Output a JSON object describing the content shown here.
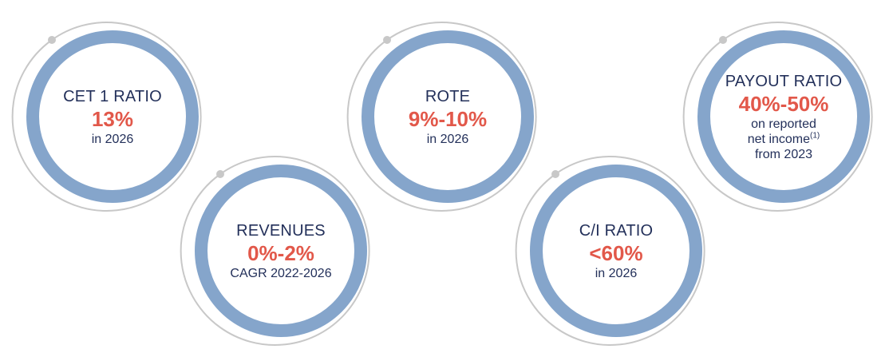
{
  "colors": {
    "ring": "#85a5cb",
    "outer_arc": "#c8c8c8",
    "title_text": "#23305a",
    "value_text": "#e2584a"
  },
  "kpis": [
    {
      "title": "CET 1 RATIO",
      "value": "13%",
      "sub": "in 2026"
    },
    {
      "title": "REVENUES",
      "value": "0%-2%",
      "sub": "CAGR 2022-2026"
    },
    {
      "title": "ROTE",
      "value": "9%-10%",
      "sub": "in 2026"
    },
    {
      "title": "C/I RATIO",
      "value": "<60%",
      "sub": "in 2026"
    },
    {
      "title": "PAYOUT RATIO",
      "value": "40%-50%",
      "sub_lines": [
        "on reported",
        "net income",
        "from 2023"
      ],
      "sub_footnote": "(1)"
    }
  ]
}
